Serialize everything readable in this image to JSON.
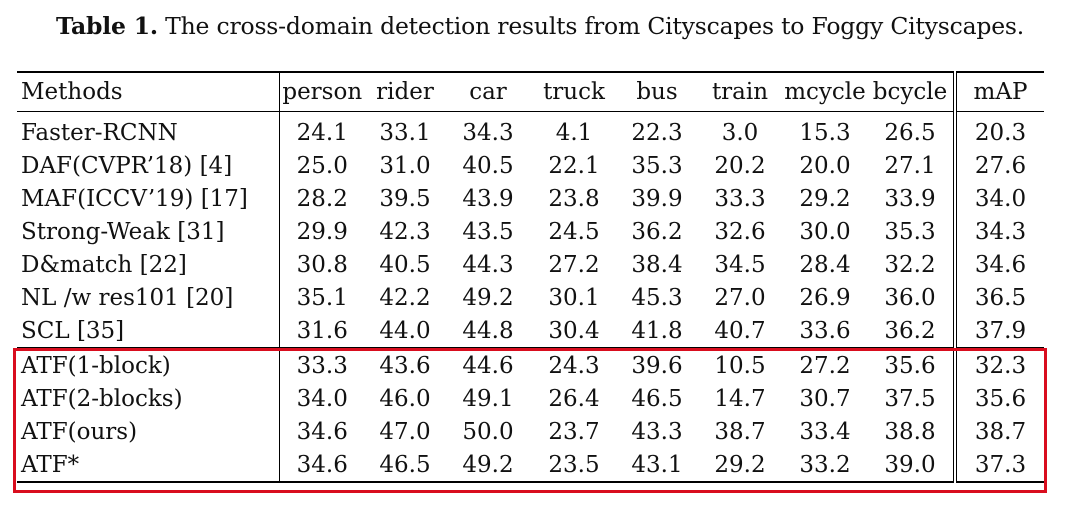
{
  "caption": {
    "label": "Table 1.",
    "text": "The cross-domain detection results from Cityscapes to Foggy Cityscapes."
  },
  "table": {
    "headers": [
      "Methods",
      "person",
      "rider",
      "car",
      "truck",
      "bus",
      "train",
      "mcycle",
      "bcycle",
      "mAP"
    ],
    "rows_sota": [
      {
        "method": "Faster-RCNN",
        "values": [
          "24.1",
          "33.1",
          "34.3",
          "4.1",
          "22.3",
          "3.0",
          "15.3",
          "26.5",
          "20.3"
        ],
        "bold": []
      },
      {
        "method": "DAF(CVPR’18) [4]",
        "values": [
          "25.0",
          "31.0",
          "40.5",
          "22.1",
          "35.3",
          "20.2",
          "20.0",
          "27.1",
          "27.6"
        ],
        "bold": []
      },
      {
        "method": "MAF(ICCV’19) [17]",
        "values": [
          "28.2",
          "39.5",
          "43.9",
          "23.8",
          "39.9",
          "33.3",
          "29.2",
          "33.9",
          "34.0"
        ],
        "bold": []
      },
      {
        "method": "Strong-Weak [31]",
        "values": [
          "29.9",
          "42.3",
          "43.5",
          "24.5",
          "36.2",
          "32.6",
          "30.0",
          "35.3",
          "34.3"
        ],
        "bold": []
      },
      {
        "method": "D&match [22]",
        "values": [
          "30.8",
          "40.5",
          "44.3",
          "27.2",
          "38.4",
          "34.5",
          "28.4",
          "32.2",
          "34.6"
        ],
        "bold": []
      },
      {
        "method": "NL /w res101 [20]",
        "values": [
          "35.1",
          "42.2",
          "49.2",
          "30.1",
          "45.3",
          "27.0",
          "26.9",
          "36.0",
          "36.5"
        ],
        "bold": [
          0
        ]
      },
      {
        "method": "SCL [35]",
        "values": [
          "31.6",
          "44.0",
          "44.8",
          "30.4",
          "41.8",
          "40.7",
          "33.6",
          "36.2",
          "37.9"
        ],
        "bold": [
          3,
          5,
          6
        ]
      }
    ],
    "rows_ours": [
      {
        "method": "ATF(1-block)",
        "values": [
          "33.3",
          "43.6",
          "44.6",
          "24.3",
          "39.6",
          "10.5",
          "27.2",
          "35.6",
          "32.3"
        ],
        "bold": []
      },
      {
        "method": "ATF(2-blocks)",
        "values": [
          "34.0",
          "46.0",
          "49.1",
          "26.4",
          "46.5",
          "14.7",
          "30.7",
          "37.5",
          "35.6"
        ],
        "bold": [
          4
        ]
      },
      {
        "method": "ATF(ours)",
        "values": [
          "34.6",
          "47.0",
          "50.0",
          "23.7",
          "43.3",
          "38.7",
          "33.4",
          "38.8",
          "38.7"
        ],
        "bold": [
          1,
          2,
          7,
          8
        ]
      },
      {
        "method": "ATF*",
        "values": [
          "34.6",
          "46.5",
          "49.2",
          "23.5",
          "43.1",
          "29.2",
          "33.2",
          "39.0",
          "37.3"
        ],
        "bold": []
      }
    ]
  },
  "colors": {
    "highlight_box": "#d90d1e",
    "text": "#111111"
  }
}
